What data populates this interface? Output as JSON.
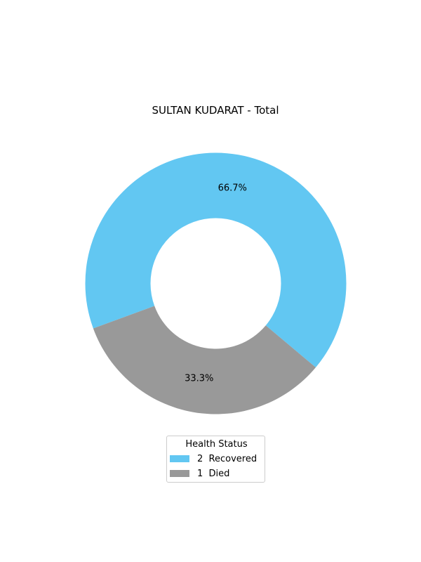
{
  "chart_data": {
    "type": "pie",
    "donut": true,
    "title": "SULTAN KUDARAT - Total",
    "slices": [
      {
        "name": "Recovered",
        "count": 2,
        "value": 66.7,
        "pct_label": "66.7%",
        "color": "#62c7f2",
        "legend_label": "2  Recovered"
      },
      {
        "name": "Died",
        "count": 1,
        "value": 33.3,
        "pct_label": "33.3%",
        "color": "#999999",
        "legend_label": "1  Died"
      }
    ],
    "legend": {
      "title": "Health Status",
      "placement": "bottom-center"
    }
  }
}
